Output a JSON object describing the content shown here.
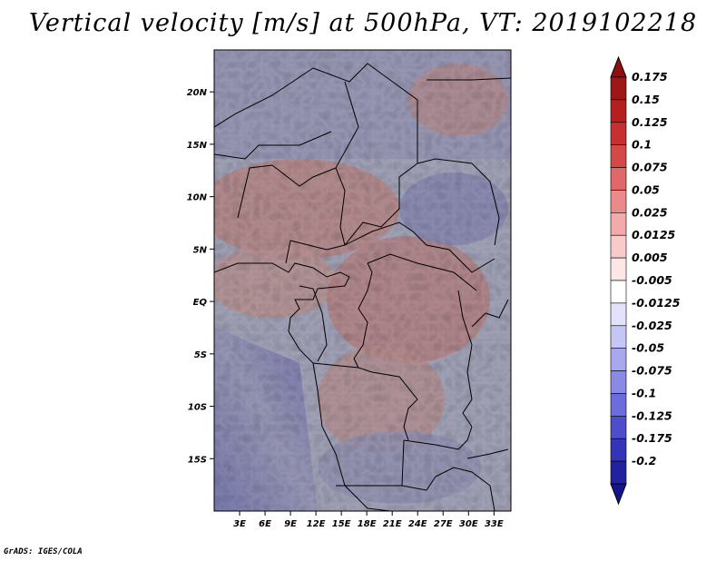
{
  "title": "Vertical velocity [m/s] at 500hPa, VT: 2019102218",
  "credit": "GrADS: IGES/COLA",
  "chart_data": {
    "type": "heatmap",
    "title": "Vertical velocity [m/s] at 500hPa, VT: 2019102218",
    "variable": "Vertical velocity",
    "units": "m/s",
    "level": "500hPa",
    "valid_time": "2019102218",
    "x_range_deg": [
      0,
      35
    ],
    "y_range_deg": [
      -20,
      24
    ],
    "x_ticks": [
      {
        "value": 3,
        "label": "3E"
      },
      {
        "value": 6,
        "label": "6E"
      },
      {
        "value": 9,
        "label": "9E"
      },
      {
        "value": 12,
        "label": "12E"
      },
      {
        "value": 15,
        "label": "15E"
      },
      {
        "value": 18,
        "label": "18E"
      },
      {
        "value": 21,
        "label": "21E"
      },
      {
        "value": 24,
        "label": "24E"
      },
      {
        "value": 27,
        "label": "27E"
      },
      {
        "value": 30,
        "label": "30E"
      },
      {
        "value": 33,
        "label": "33E"
      }
    ],
    "y_ticks": [
      {
        "value": 20,
        "label": "20N"
      },
      {
        "value": 15,
        "label": "15N"
      },
      {
        "value": 10,
        "label": "10N"
      },
      {
        "value": 5,
        "label": "5N"
      },
      {
        "value": 0,
        "label": "EQ"
      },
      {
        "value": -5,
        "label": "5S"
      },
      {
        "value": -10,
        "label": "10S"
      },
      {
        "value": -15,
        "label": "15S"
      }
    ],
    "colorbar": {
      "levels": [
        {
          "label": "0.175",
          "color": "#a01616"
        },
        {
          "label": "0.15",
          "color": "#b42020"
        },
        {
          "label": "0.125",
          "color": "#c63030"
        },
        {
          "label": "0.1",
          "color": "#d44848"
        },
        {
          "label": "0.075",
          "color": "#e06868"
        },
        {
          "label": "0.05",
          "color": "#ea8a8a"
        },
        {
          "label": "0.025",
          "color": "#f3aaaa"
        },
        {
          "label": "0.0125",
          "color": "#f8caca"
        },
        {
          "label": "0.005",
          "color": "#fce6e6"
        },
        {
          "label": "-0.005",
          "color": "#ffffff"
        },
        {
          "label": "-0.0125",
          "color": "#e2e2fa"
        },
        {
          "label": "-0.025",
          "color": "#c6c6f4"
        },
        {
          "label": "-0.05",
          "color": "#a8a8ee"
        },
        {
          "label": "-0.075",
          "color": "#8a8ae6"
        },
        {
          "label": "-0.1",
          "color": "#6c6cdc"
        },
        {
          "label": "-0.125",
          "color": "#4e4ecc"
        },
        {
          "label": "-0.175",
          "color": "#3434b8"
        },
        {
          "label": "-0.2",
          "color": "#2222a0"
        }
      ],
      "top_arrow_color": "#8c1010",
      "bottom_arrow_color": "#14148c"
    }
  }
}
